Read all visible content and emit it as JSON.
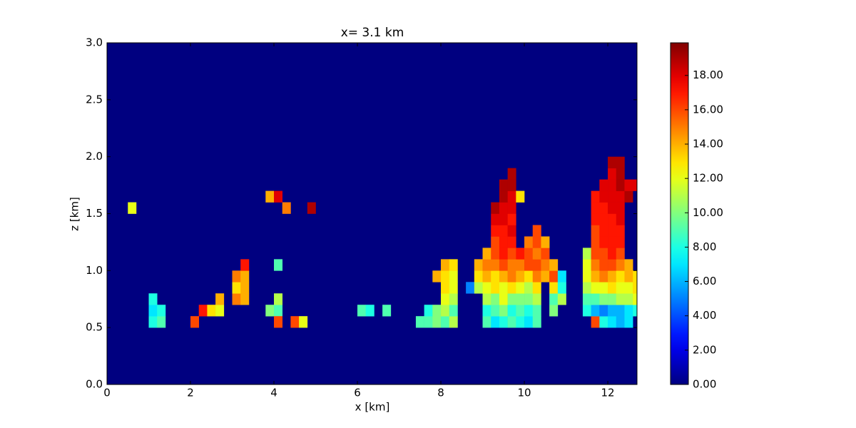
{
  "chart_data": {
    "type": "heatmap",
    "title": "x= 3.1 km",
    "xlabel": "x [km]",
    "ylabel": "z [km]",
    "xlim": [
      0,
      12.7
    ],
    "ylim": [
      0,
      3
    ],
    "xticks": [
      0,
      2,
      4,
      6,
      8,
      10,
      12
    ],
    "yticks": [
      {
        "value": 0,
        "label": "0.0"
      },
      {
        "value": 0.5,
        "label": "0.5"
      },
      {
        "value": 1,
        "label": "1.0"
      },
      {
        "value": 1.5,
        "label": "1.5"
      },
      {
        "value": 2,
        "label": "2.0"
      },
      {
        "value": 2.5,
        "label": "2.5"
      },
      {
        "value": 3,
        "label": "3.0"
      }
    ],
    "colormap": "jet",
    "clim": [
      0,
      19.9
    ],
    "cticks": [
      {
        "value": 0,
        "label": "0.00"
      },
      {
        "value": 2,
        "label": "2.00"
      },
      {
        "value": 4,
        "label": "4.00"
      },
      {
        "value": 6,
        "label": "6.00"
      },
      {
        "value": 8,
        "label": "8.00"
      },
      {
        "value": 10,
        "label": "10.00"
      },
      {
        "value": 12,
        "label": "12.00"
      },
      {
        "value": 14,
        "label": "14.00"
      },
      {
        "value": 16,
        "label": "16.00"
      },
      {
        "value": 18,
        "label": "18.00"
      }
    ],
    "background_value": 0,
    "dx": 0.2,
    "dy": 0.1,
    "cells": [
      [
        1.0,
        0.5,
        8
      ],
      [
        1.2,
        0.5,
        9
      ],
      [
        1.0,
        0.6,
        7
      ],
      [
        1.2,
        0.6,
        8
      ],
      [
        1.0,
        0.7,
        8
      ],
      [
        0.5,
        1.5,
        12
      ],
      [
        2.0,
        0.5,
        16
      ],
      [
        2.2,
        0.6,
        17
      ],
      [
        2.4,
        0.6,
        13
      ],
      [
        2.6,
        0.6,
        12
      ],
      [
        2.6,
        0.7,
        14
      ],
      [
        3.0,
        0.7,
        15
      ],
      [
        3.2,
        0.7,
        14
      ],
      [
        3.0,
        0.8,
        13
      ],
      [
        3.2,
        0.8,
        14
      ],
      [
        3.0,
        0.9,
        15
      ],
      [
        3.2,
        0.9,
        14
      ],
      [
        3.2,
        1.0,
        17
      ],
      [
        3.8,
        0.6,
        10
      ],
      [
        4.0,
        0.6,
        9
      ],
      [
        4.0,
        0.7,
        11
      ],
      [
        4.0,
        0.5,
        16
      ],
      [
        4.0,
        1.0,
        9
      ],
      [
        4.4,
        0.5,
        16
      ],
      [
        4.6,
        0.5,
        12
      ],
      [
        3.8,
        1.6,
        14
      ],
      [
        4.0,
        1.6,
        18
      ],
      [
        4.2,
        1.5,
        15
      ],
      [
        4.8,
        1.5,
        19
      ],
      [
        6.0,
        0.6,
        9
      ],
      [
        6.2,
        0.6,
        8
      ],
      [
        6.6,
        0.6,
        9
      ],
      [
        7.4,
        0.5,
        9
      ],
      [
        7.6,
        0.5,
        9
      ],
      [
        7.8,
        0.5,
        10
      ],
      [
        8.0,
        0.5,
        9
      ],
      [
        8.2,
        0.5,
        11
      ],
      [
        7.6,
        0.6,
        8
      ],
      [
        7.8,
        0.6,
        10
      ],
      [
        8.0,
        0.6,
        11
      ],
      [
        8.2,
        0.6,
        9
      ],
      [
        8.0,
        0.7,
        12
      ],
      [
        8.2,
        0.7,
        11
      ],
      [
        8.0,
        0.8,
        13
      ],
      [
        8.2,
        0.8,
        12
      ],
      [
        7.8,
        0.9,
        14
      ],
      [
        8.0,
        0.9,
        13
      ],
      [
        8.2,
        0.9,
        12
      ],
      [
        8.0,
        1.0,
        14
      ],
      [
        8.2,
        1.0,
        13
      ],
      [
        8.6,
        0.8,
        5
      ],
      [
        9.0,
        0.5,
        9
      ],
      [
        9.2,
        0.5,
        7
      ],
      [
        9.4,
        0.5,
        8
      ],
      [
        9.6,
        0.5,
        9
      ],
      [
        9.0,
        0.6,
        8
      ],
      [
        9.2,
        0.6,
        9
      ],
      [
        9.4,
        0.6,
        10
      ],
      [
        9.6,
        0.6,
        8
      ],
      [
        9.0,
        0.7,
        11
      ],
      [
        9.2,
        0.7,
        10
      ],
      [
        9.4,
        0.7,
        12
      ],
      [
        9.6,
        0.7,
        10
      ],
      [
        8.8,
        0.8,
        11
      ],
      [
        9.0,
        0.8,
        12
      ],
      [
        9.2,
        0.8,
        13
      ],
      [
        9.4,
        0.8,
        12
      ],
      [
        9.6,
        0.8,
        13
      ],
      [
        8.8,
        0.9,
        13
      ],
      [
        9.0,
        0.9,
        14
      ],
      [
        9.2,
        0.9,
        13
      ],
      [
        9.4,
        0.9,
        14
      ],
      [
        9.6,
        0.9,
        15
      ],
      [
        8.8,
        1.0,
        14
      ],
      [
        9.0,
        1.0,
        15
      ],
      [
        9.2,
        1.0,
        15
      ],
      [
        9.4,
        1.0,
        16
      ],
      [
        9.6,
        1.0,
        15
      ],
      [
        9.0,
        1.1,
        14
      ],
      [
        9.2,
        1.1,
        16
      ],
      [
        9.4,
        1.1,
        17
      ],
      [
        9.6,
        1.1,
        16
      ],
      [
        9.2,
        1.2,
        16
      ],
      [
        9.4,
        1.2,
        17
      ],
      [
        9.6,
        1.2,
        17
      ],
      [
        9.2,
        1.3,
        17
      ],
      [
        9.4,
        1.3,
        17
      ],
      [
        9.6,
        1.3,
        18
      ],
      [
        9.2,
        1.4,
        18
      ],
      [
        9.4,
        1.4,
        18
      ],
      [
        9.6,
        1.4,
        17
      ],
      [
        9.2,
        1.5,
        19
      ],
      [
        9.4,
        1.5,
        18
      ],
      [
        9.6,
        1.5,
        18
      ],
      [
        9.4,
        1.6,
        19
      ],
      [
        9.6,
        1.6,
        18
      ],
      [
        9.4,
        1.7,
        19
      ],
      [
        9.6,
        1.7,
        19
      ],
      [
        9.6,
        1.8,
        19
      ],
      [
        9.8,
        0.5,
        8
      ],
      [
        10.0,
        0.5,
        7
      ],
      [
        10.2,
        0.5,
        9
      ],
      [
        9.8,
        0.6,
        9
      ],
      [
        10.0,
        0.6,
        8
      ],
      [
        10.2,
        0.6,
        9
      ],
      [
        10.6,
        0.6,
        10
      ],
      [
        9.8,
        0.7,
        10
      ],
      [
        10.0,
        0.7,
        10
      ],
      [
        10.2,
        0.7,
        11
      ],
      [
        10.6,
        0.7,
        9
      ],
      [
        10.8,
        0.7,
        11
      ],
      [
        9.8,
        0.8,
        12
      ],
      [
        10.0,
        0.8,
        11
      ],
      [
        10.2,
        0.8,
        13
      ],
      [
        10.6,
        0.8,
        13
      ],
      [
        10.8,
        0.8,
        8
      ],
      [
        9.8,
        0.9,
        14
      ],
      [
        10.0,
        0.9,
        13
      ],
      [
        10.2,
        0.9,
        15
      ],
      [
        10.4,
        0.9,
        14
      ],
      [
        10.6,
        0.9,
        16
      ],
      [
        10.8,
        0.9,
        7
      ],
      [
        9.8,
        1.0,
        15
      ],
      [
        10.0,
        1.0,
        16
      ],
      [
        10.2,
        1.0,
        16
      ],
      [
        10.4,
        1.0,
        15
      ],
      [
        10.6,
        1.0,
        14
      ],
      [
        9.8,
        1.1,
        17
      ],
      [
        10.0,
        1.1,
        16
      ],
      [
        10.2,
        1.1,
        15
      ],
      [
        10.4,
        1.1,
        16
      ],
      [
        10.0,
        1.2,
        15
      ],
      [
        10.2,
        1.2,
        16
      ],
      [
        10.4,
        1.2,
        14
      ],
      [
        10.2,
        1.3,
        16
      ],
      [
        9.8,
        1.6,
        13
      ],
      [
        11.6,
        0.5,
        16
      ],
      [
        11.8,
        0.5,
        8
      ],
      [
        12.0,
        0.5,
        7
      ],
      [
        12.2,
        0.5,
        6
      ],
      [
        12.4,
        0.5,
        7
      ],
      [
        11.4,
        0.6,
        8
      ],
      [
        11.6,
        0.6,
        6
      ],
      [
        11.8,
        0.6,
        5
      ],
      [
        12.0,
        0.6,
        6
      ],
      [
        12.2,
        0.6,
        6
      ],
      [
        12.4,
        0.6,
        7
      ],
      [
        12.6,
        0.6,
        8
      ],
      [
        11.4,
        0.7,
        9
      ],
      [
        11.6,
        0.7,
        9
      ],
      [
        11.8,
        0.7,
        10
      ],
      [
        12.0,
        0.7,
        10
      ],
      [
        12.2,
        0.7,
        11
      ],
      [
        12.4,
        0.7,
        11
      ],
      [
        12.6,
        0.7,
        12
      ],
      [
        11.4,
        0.8,
        11
      ],
      [
        11.6,
        0.8,
        12
      ],
      [
        11.8,
        0.8,
        12
      ],
      [
        12.0,
        0.8,
        13
      ],
      [
        12.2,
        0.8,
        12
      ],
      [
        12.4,
        0.8,
        12
      ],
      [
        12.6,
        0.8,
        13
      ],
      [
        11.4,
        0.9,
        12
      ],
      [
        11.6,
        0.9,
        14
      ],
      [
        11.8,
        0.9,
        15
      ],
      [
        12.0,
        0.9,
        14
      ],
      [
        12.2,
        0.9,
        13
      ],
      [
        12.4,
        0.9,
        14
      ],
      [
        12.6,
        0.9,
        13
      ],
      [
        11.4,
        1.0,
        12
      ],
      [
        11.6,
        1.0,
        15
      ],
      [
        11.8,
        1.0,
        16
      ],
      [
        12.0,
        1.0,
        16
      ],
      [
        12.2,
        1.0,
        15
      ],
      [
        12.4,
        1.0,
        14
      ],
      [
        11.4,
        1.1,
        11
      ],
      [
        11.6,
        1.1,
        16
      ],
      [
        11.8,
        1.1,
        16
      ],
      [
        12.0,
        1.1,
        17
      ],
      [
        12.2,
        1.1,
        16
      ],
      [
        11.6,
        1.2,
        16
      ],
      [
        11.8,
        1.2,
        17
      ],
      [
        12.0,
        1.2,
        17
      ],
      [
        12.2,
        1.2,
        17
      ],
      [
        11.6,
        1.3,
        16
      ],
      [
        11.8,
        1.3,
        17
      ],
      [
        12.0,
        1.3,
        17
      ],
      [
        12.2,
        1.3,
        17
      ],
      [
        11.6,
        1.4,
        17
      ],
      [
        11.8,
        1.4,
        17
      ],
      [
        12.0,
        1.4,
        17
      ],
      [
        12.2,
        1.4,
        18
      ],
      [
        11.6,
        1.5,
        17
      ],
      [
        11.8,
        1.5,
        17
      ],
      [
        12.0,
        1.5,
        18
      ],
      [
        12.2,
        1.5,
        18
      ],
      [
        11.6,
        1.6,
        17
      ],
      [
        11.8,
        1.6,
        18
      ],
      [
        12.0,
        1.6,
        18
      ],
      [
        12.2,
        1.6,
        18
      ],
      [
        12.4,
        1.6,
        19
      ],
      [
        11.8,
        1.7,
        18
      ],
      [
        12.0,
        1.7,
        18
      ],
      [
        12.2,
        1.7,
        19
      ],
      [
        12.4,
        1.7,
        18
      ],
      [
        12.6,
        1.7,
        18
      ],
      [
        12.0,
        1.8,
        18
      ],
      [
        12.2,
        1.8,
        19
      ],
      [
        12.0,
        1.9,
        19
      ],
      [
        12.2,
        1.9,
        19
      ]
    ]
  }
}
